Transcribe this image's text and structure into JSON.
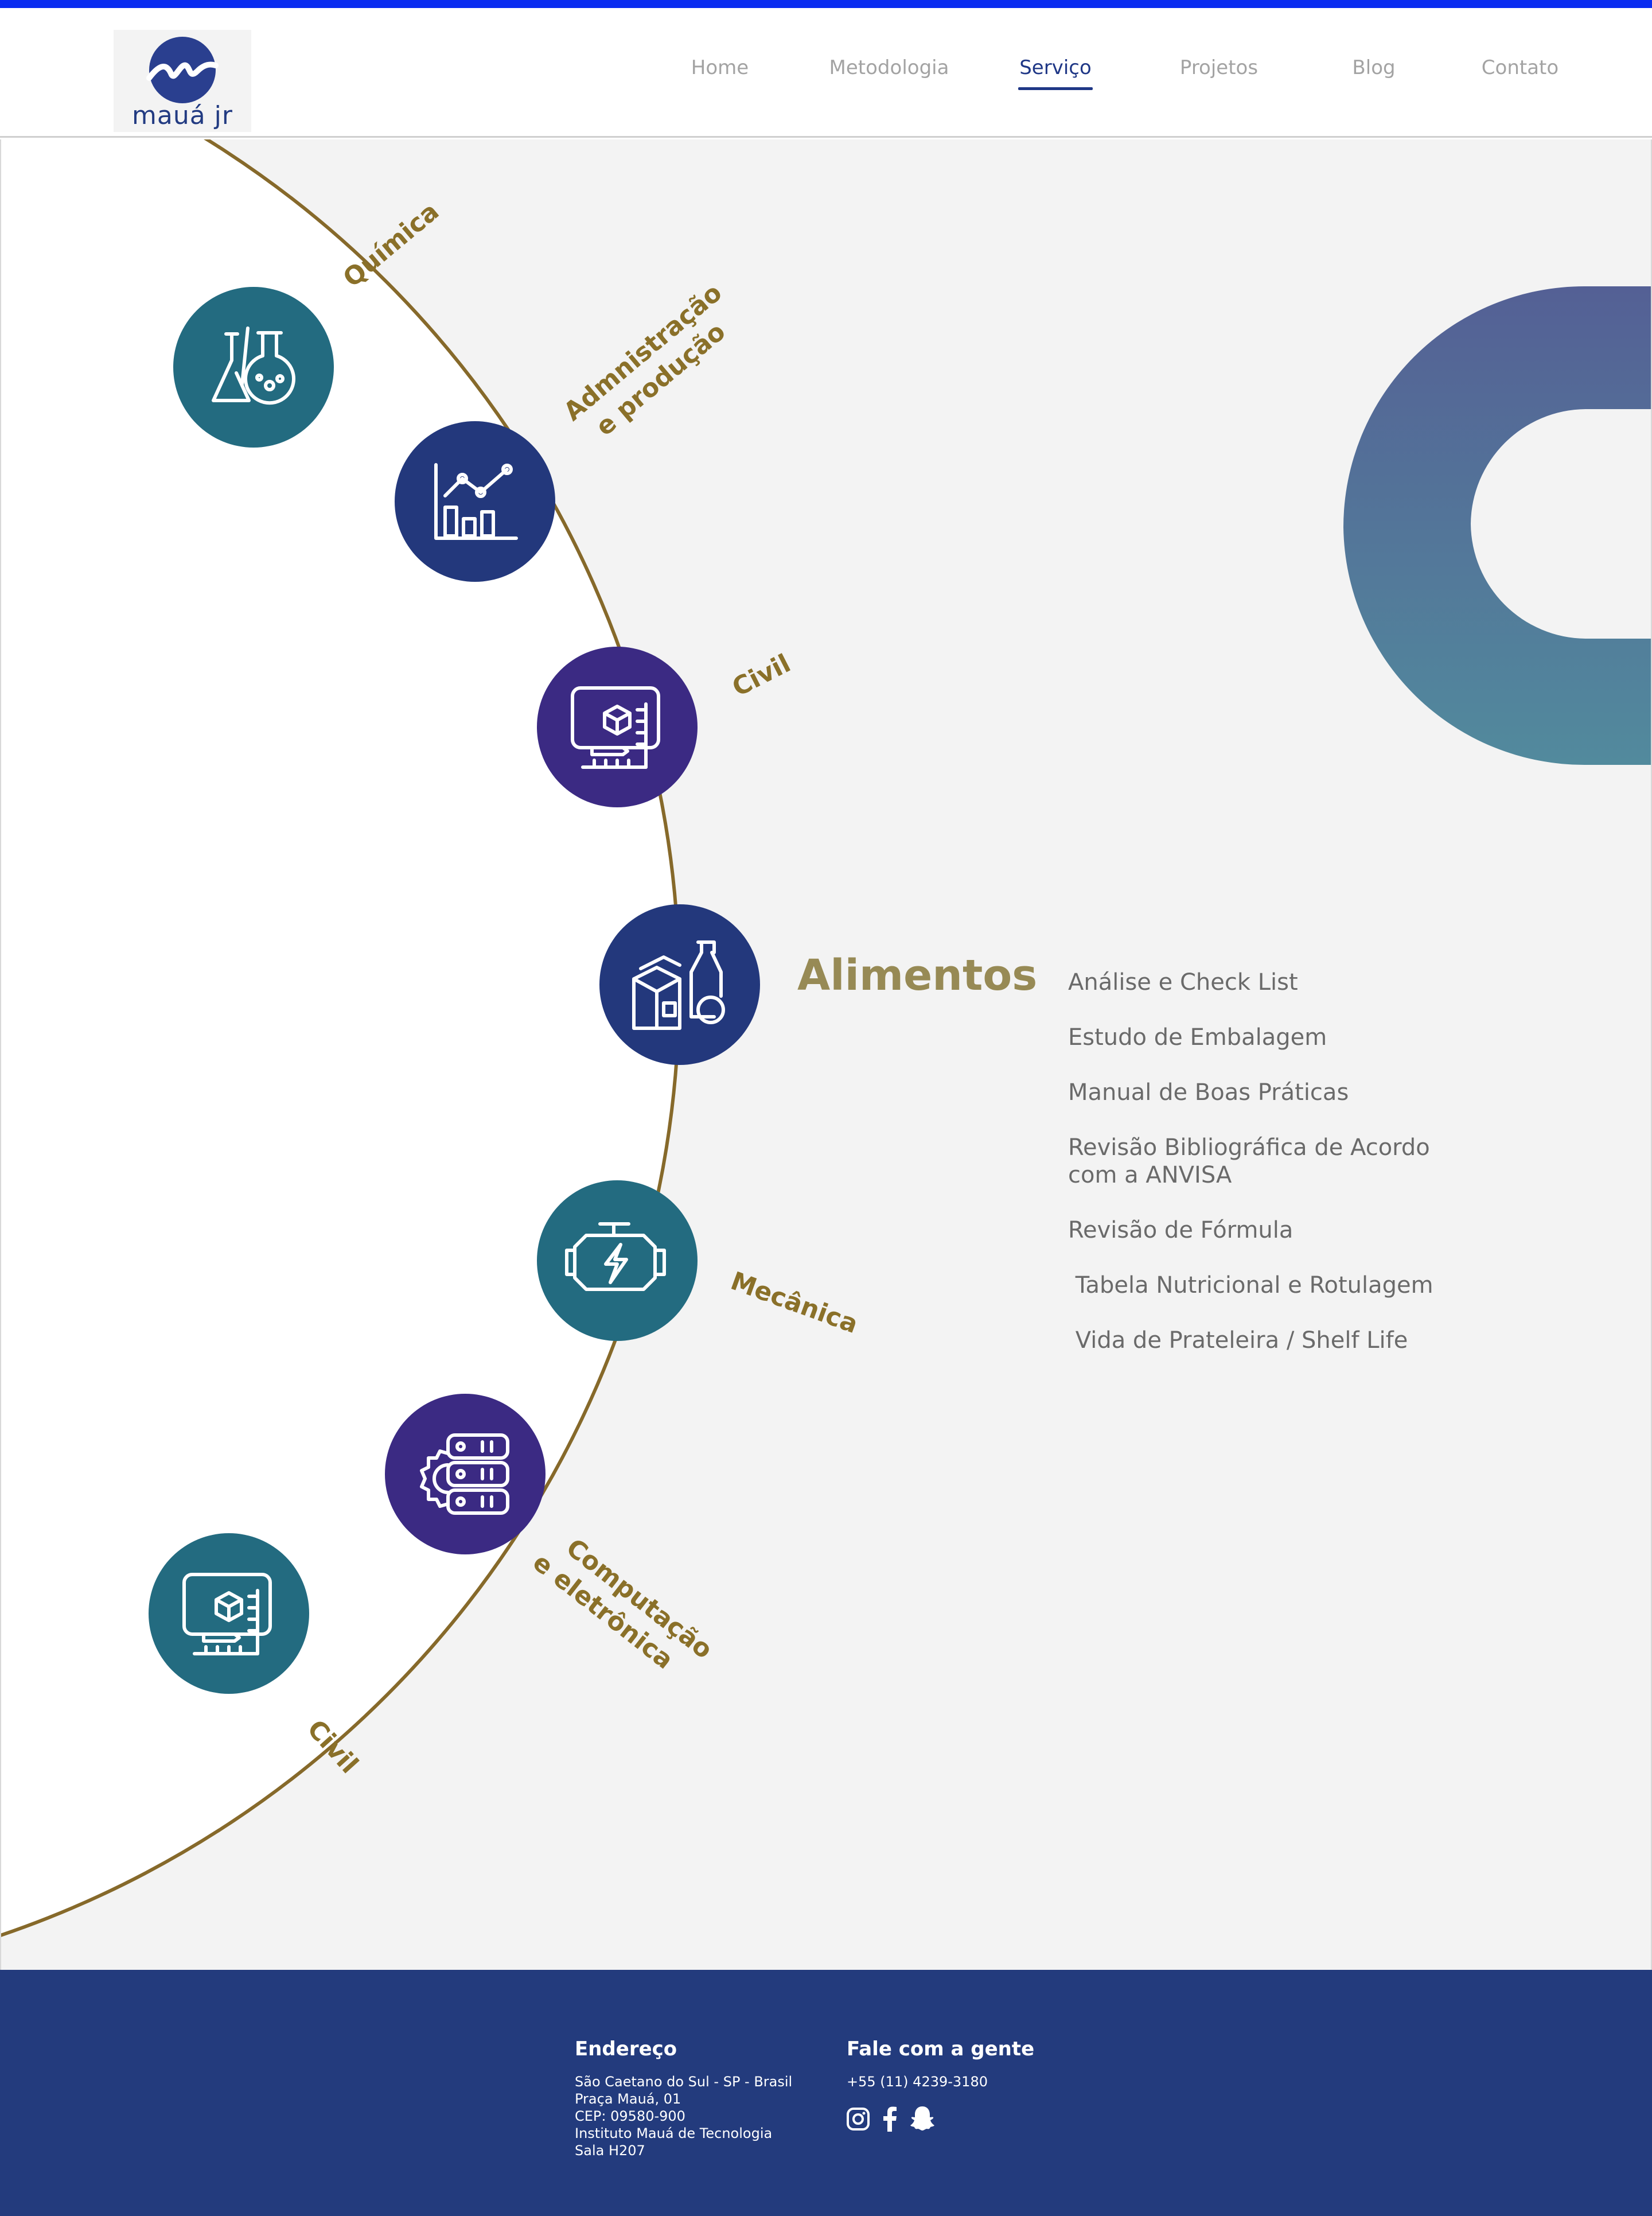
{
  "header": {
    "logo_text": "mauá jr",
    "nav": [
      {
        "label": "Home",
        "active": false
      },
      {
        "label": "Metodologia",
        "active": false
      },
      {
        "label": "Serviço",
        "active": true
      },
      {
        "label": "Projetos",
        "active": false
      },
      {
        "label": "Blog",
        "active": false
      },
      {
        "label": "Contato",
        "active": false
      }
    ]
  },
  "areas": [
    {
      "label": "Química",
      "icon": "flask-icon",
      "color": "#236b80"
    },
    {
      "label_lines": [
        "Admnistração",
        "e produção"
      ],
      "icon": "chart-icon",
      "color": "#23387c"
    },
    {
      "label": "Civil",
      "icon": "blueprint-icon",
      "color": "#3b2a83"
    },
    {
      "label": "Alimentos",
      "icon": "food-package-icon",
      "color": "#23387c"
    },
    {
      "label": "Mecânica",
      "icon": "engine-icon",
      "color": "#236b80"
    },
    {
      "label_lines": [
        "Computação",
        "e eletrônica"
      ],
      "icon": "server-gear-icon",
      "color": "#3b2a83"
    },
    {
      "label": "Civil",
      "icon": "blueprint-icon",
      "color": "#236b80"
    }
  ],
  "selected_area": {
    "title": "Alimentos",
    "services": [
      "Análise e Check List",
      "Estudo de Embalagem",
      "Manual de Boas Práticas",
      "Revisão Bibliográfica de Acordo com a ANVISA",
      "Revisão de Fórmula",
      " Tabela Nutricional e Rotulagem",
      " Vida de Prateleira / Shelf Life"
    ]
  },
  "footer": {
    "address_title": "Endereço",
    "address_lines": [
      "São Caetano do Sul - SP - Brasil",
      "Praça Mauá, 01",
      "CEP: 09580-900",
      "Instituto Mauá de Tecnologia",
      "Sala H207"
    ],
    "contact_title": "Fale com a gente",
    "phone": "+55 (11) 4239-3180",
    "social_icons": [
      "instagram-icon",
      "facebook-icon",
      "snapchat-icon"
    ]
  },
  "colors": {
    "accent_blue": "#0a2cf0",
    "navy": "#233b7d",
    "teal": "#236b80",
    "purple": "#3b2a83",
    "gold": "#8a7029",
    "background": "#f3f3f3"
  }
}
